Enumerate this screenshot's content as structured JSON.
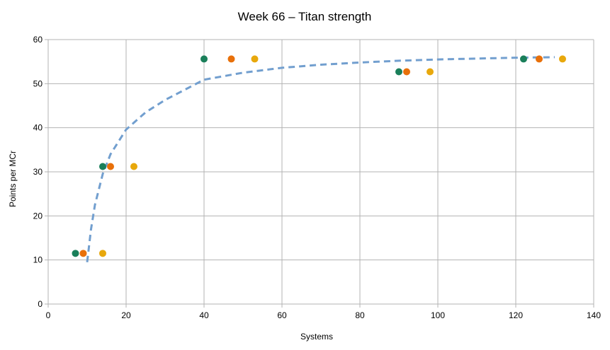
{
  "chart_data": {
    "type": "scatter",
    "title": "Week 66  – Titan strength",
    "xlabel": "Systems",
    "ylabel": "Points per MCr",
    "xlim": [
      0,
      140
    ],
    "ylim": [
      0,
      60
    ],
    "xticks": [
      0,
      20,
      40,
      60,
      80,
      100,
      120,
      140
    ],
    "yticks": [
      0,
      10,
      20,
      30,
      40,
      50,
      60
    ],
    "grid": true,
    "legend": "none",
    "series": [
      {
        "color": "#1a7f5a",
        "points": [
          [
            7,
            11.5
          ],
          [
            14,
            31.2
          ],
          [
            40,
            55.6
          ],
          [
            90,
            52.7
          ],
          [
            122,
            55.6
          ]
        ]
      },
      {
        "color": "#e8700a",
        "points": [
          [
            9,
            11.5
          ],
          [
            16,
            31.2
          ],
          [
            47,
            55.6
          ],
          [
            92,
            52.7
          ],
          [
            126,
            55.6
          ]
        ]
      },
      {
        "color": "#e8a80c",
        "points": [
          [
            14,
            11.5
          ],
          [
            22,
            31.2
          ],
          [
            53,
            55.6
          ],
          [
            98,
            52.7
          ],
          [
            132,
            55.6
          ]
        ]
      }
    ],
    "trendline": {
      "style": "dashed",
      "color": "#729fcf",
      "x_range": [
        10,
        130
      ],
      "curve": [
        [
          10,
          9.5
        ],
        [
          11,
          17
        ],
        [
          12,
          22.5
        ],
        [
          14,
          29.5
        ],
        [
          16,
          34
        ],
        [
          20,
          39.6
        ],
        [
          25,
          43.5
        ],
        [
          30,
          46.3
        ],
        [
          35,
          48.6
        ],
        [
          40,
          50.9
        ],
        [
          50,
          52.5
        ],
        [
          60,
          53.6
        ],
        [
          70,
          54.3
        ],
        [
          80,
          54.8
        ],
        [
          90,
          55.2
        ],
        [
          100,
          55.5
        ],
        [
          110,
          55.7
        ],
        [
          120,
          55.9
        ],
        [
          130,
          56.0
        ]
      ]
    }
  }
}
